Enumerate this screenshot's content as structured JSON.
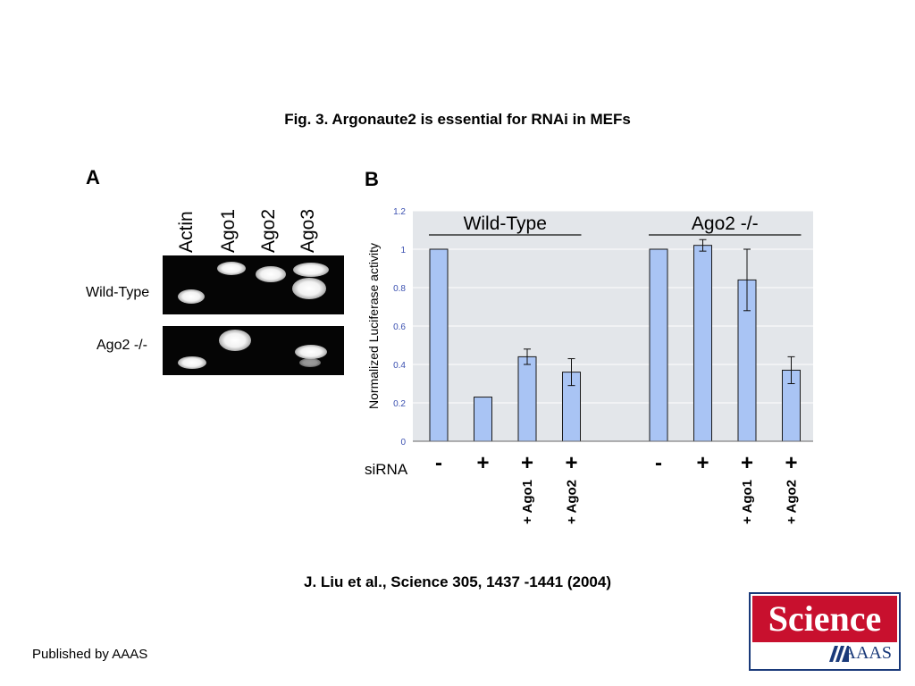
{
  "title": "Fig. 3. Argonaute2 is essential for RNAi in MEFs",
  "citation": "J.  Liu et al.,  Science  305, 1437 -1441 (2004)",
  "publisher": "Published by AAAS",
  "logo": {
    "top": "Science",
    "bottom": "AAAS"
  },
  "panelA": {
    "letter": "A",
    "lanes": [
      "Actin",
      "Ago1",
      "Ago2",
      "Ago3"
    ],
    "rows": [
      "Wild-Type",
      "Ago2 -/-"
    ]
  },
  "panelB": {
    "letter": "B"
  },
  "chart_data": {
    "type": "bar",
    "ylabel": "Normalized Luciferase activity",
    "ylim": [
      0,
      1.2
    ],
    "yticks": [
      "0",
      "0.2",
      "0.4",
      "0.6",
      "0.8",
      "1",
      "1.2"
    ],
    "grid": true,
    "groups": [
      {
        "label": "Wild-Type",
        "bars": [
          {
            "sirna": "-",
            "extra": "",
            "value": 1.0,
            "error": 0
          },
          {
            "sirna": "+",
            "extra": "",
            "value": 0.23,
            "error": 0
          },
          {
            "sirna": "+",
            "extra": "+ Ago1",
            "value": 0.44,
            "error": 0.04
          },
          {
            "sirna": "+",
            "extra": "+ Ago2",
            "value": 0.36,
            "error": 0.07
          }
        ]
      },
      {
        "label": "Ago2 -/-",
        "bars": [
          {
            "sirna": "-",
            "extra": "",
            "value": 1.0,
            "error": 0
          },
          {
            "sirna": "+",
            "extra": "",
            "value": 1.02,
            "error": 0.03
          },
          {
            "sirna": "+",
            "extra": "+ Ago1",
            "value": 0.84,
            "error": 0.16
          },
          {
            "sirna": "+",
            "extra": "+ Ago2",
            "value": 0.37,
            "error": 0.07
          }
        ]
      }
    ],
    "row_label": "siRNA",
    "colors": {
      "bar": "#a9c4f4",
      "bar_edge": "#1a1a1a",
      "plot_bg": "#e3e6ea",
      "tick_text": "#3b50b0",
      "grid": "#ffffff"
    }
  }
}
